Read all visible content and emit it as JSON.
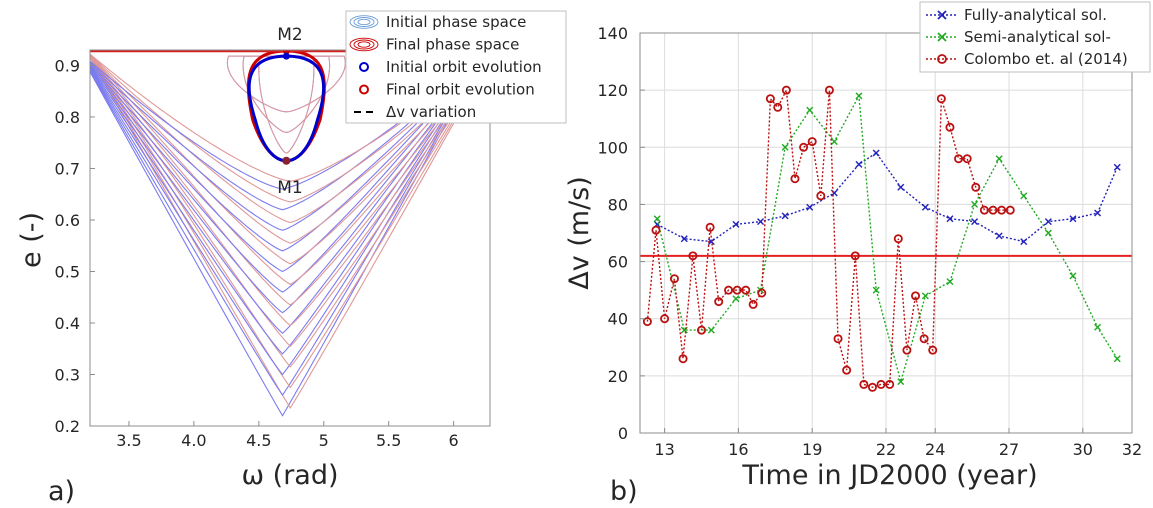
{
  "chart_data": [
    {
      "type": "line",
      "panel_label": "a)",
      "xlabel": "ω (rad)",
      "ylabel": "e (-)",
      "xlim": [
        3.2,
        6.28
      ],
      "ylim": [
        0.2,
        0.93
      ],
      "xticks": [
        "3.5",
        "4.0",
        "4.5",
        "5",
        "5.5",
        "6"
      ],
      "yticks": [
        "0.2",
        "0.3",
        "0.4",
        "0.5",
        "0.6",
        "0.7",
        "0.8",
        "0.9"
      ],
      "grid": false,
      "legend_position": "top-right",
      "legend": [
        "Initial phase space",
        "Final phase space",
        "Initial orbit evolution",
        "Final orbit evolution",
        "Δv variation"
      ],
      "annotations": [
        "M2",
        "M1"
      ],
      "e_max_line": 0.928,
      "center_omega": 4.712,
      "level_minima": [
        0.22,
        0.26,
        0.3,
        0.34,
        0.38,
        0.42,
        0.46,
        0.5,
        0.54,
        0.58,
        0.62,
        0.66,
        0.7,
        0.74,
        0.78,
        0.82,
        0.86
      ],
      "initial_orbit": {
        "omega": 4.712,
        "e_min": 0.715,
        "e_max": 0.918
      },
      "final_orbit": {
        "omega": 4.712,
        "e_min": 0.715,
        "e_max": 0.928
      },
      "colors": {
        "initial": "#0000cc",
        "final": "#cc0000",
        "initial_phase": "#7b7bf0",
        "final_phase": "#e09898",
        "line": "#d62020"
      }
    },
    {
      "type": "line",
      "panel_label": "b)",
      "xlabel": "Time in JD2000 (year)",
      "ylabel": "Δv (m/s)",
      "xlim": [
        12.0,
        32.0
      ],
      "ylim": [
        0,
        140
      ],
      "xticks": [
        "13",
        "16",
        "19",
        "22",
        "24",
        "27",
        "30",
        "32"
      ],
      "xtick_values": [
        13,
        16,
        19,
        22,
        24,
        27,
        30,
        32
      ],
      "yticks": [
        "0",
        "20",
        "40",
        "60",
        "80",
        "100",
        "120",
        "140"
      ],
      "grid": true,
      "legend_position": "top-right",
      "hline": 62,
      "series": [
        {
          "name": "Fully-analytical sol.",
          "color": "#2222bb",
          "marker": "x",
          "x": [
            12.7,
            13.8,
            14.9,
            15.9,
            16.9,
            17.9,
            18.9,
            19.9,
            20.9,
            21.6,
            22.6,
            23.6,
            24.6,
            25.6,
            26.6,
            27.6,
            28.6,
            29.6,
            30.6,
            31.4
          ],
          "y": [
            73,
            68,
            67,
            73,
            74,
            76,
            79,
            84,
            94,
            98,
            86,
            79,
            75,
            74,
            69,
            67,
            74,
            75,
            77,
            93
          ]
        },
        {
          "name": "Semi-analytical sol-",
          "color": "#22aa22",
          "marker": "x",
          "x": [
            12.7,
            13.8,
            14.9,
            15.9,
            16.9,
            17.9,
            18.9,
            19.9,
            20.9,
            21.6,
            22.6,
            23.6,
            24.6,
            25.6,
            26.6,
            27.6,
            28.6,
            29.6,
            30.6,
            31.4
          ],
          "y": [
            75,
            36,
            36,
            47,
            50,
            100,
            113,
            102,
            118,
            50,
            18,
            48,
            53,
            80,
            96,
            83,
            70,
            55,
            37,
            26
          ]
        },
        {
          "name": "Colombo et. al (2014)",
          "color": "#bb1111",
          "marker": "o",
          "x": [
            12.3,
            12.65,
            13.0,
            13.4,
            13.75,
            14.15,
            14.5,
            14.85,
            15.2,
            15.6,
            15.95,
            16.3,
            16.6,
            16.95,
            17.3,
            17.6,
            17.95,
            18.3,
            18.65,
            19.0,
            19.35,
            19.7,
            20.05,
            20.4,
            20.75,
            21.1,
            21.45,
            21.8,
            22.15,
            22.5,
            22.85,
            23.2,
            23.55,
            23.9,
            24.25,
            24.6,
            24.95,
            25.3,
            25.65,
            26.0,
            26.35,
            26.7,
            27.05
          ],
          "y": [
            39,
            71,
            40,
            54,
            26,
            62,
            36,
            72,
            46,
            50,
            50,
            50,
            45,
            49,
            117,
            114,
            120,
            89,
            100,
            102,
            83,
            120,
            33,
            22,
            62,
            17,
            16,
            17,
            17,
            68,
            29,
            48,
            33,
            29,
            117,
            107,
            96,
            96,
            86,
            78,
            78,
            78,
            78
          ]
        }
      ],
      "colors": {
        "grid": "#dcdcdc",
        "hline": "#e62020"
      }
    }
  ]
}
